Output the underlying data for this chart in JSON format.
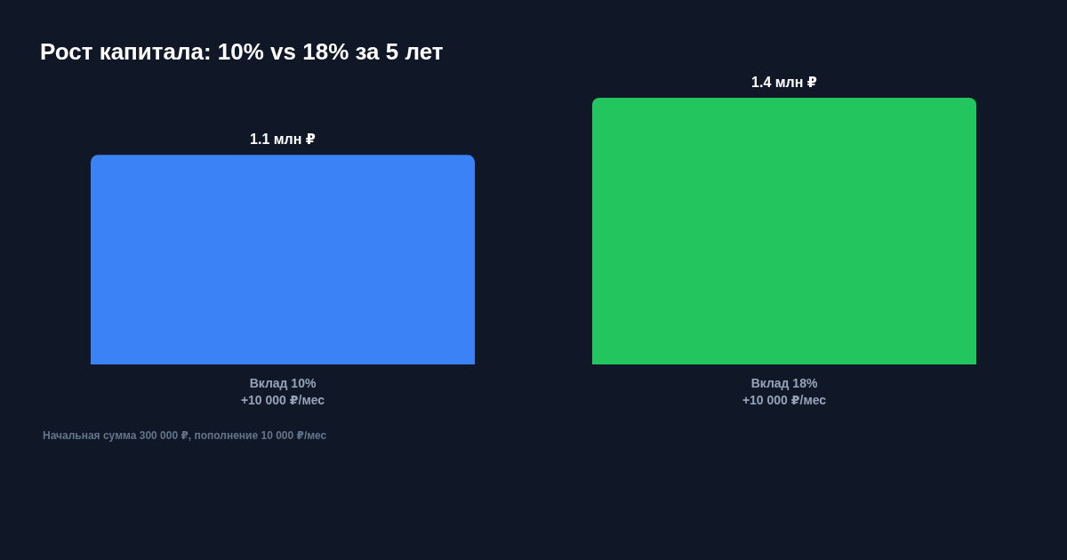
{
  "chart_data": {
    "type": "bar",
    "title": "Рост капитала: 10% vs 18% за 5 лет",
    "categories": [
      "Вклад 10%\n+10 000 ₽/мес",
      "Вклад 18%\n+10 000 ₽/мес"
    ],
    "values": [
      1.1,
      1.4
    ],
    "colors": [
      "#3b82f6",
      "#22c55e"
    ],
    "value_labels": [
      "1.1 млн ₽",
      "1.4 млн ₽"
    ],
    "tick_labels": "x",
    "annotations": [
      "Начальная сумма 300 000 ₽, пополнение 10 000 ₽/мес"
    ]
  }
}
